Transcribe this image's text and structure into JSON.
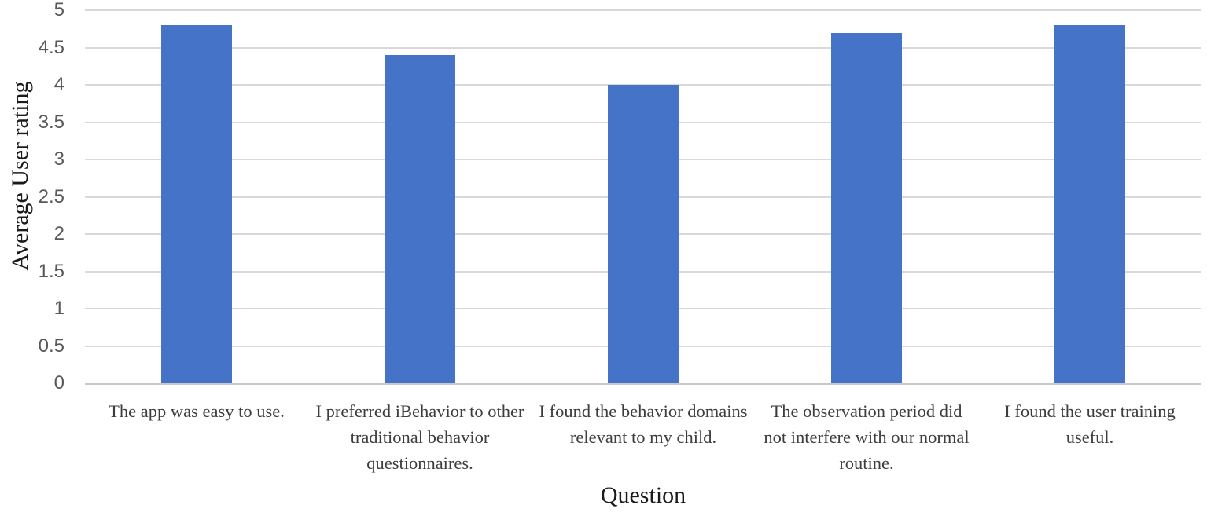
{
  "chart_data": {
    "type": "bar",
    "title": "",
    "xlabel": "Question",
    "ylabel": "Average User rating",
    "categories": [
      "The app was easy to use.",
      "I preferred iBehavior to other traditional behavior questionnaires.",
      "I found the behavior domains relevant to my child.",
      "The observation period did not interfere with our normal routine.",
      "I found the user training useful."
    ],
    "values": [
      4.8,
      4.4,
      4,
      4.7,
      4.8
    ],
    "ylim": [
      0,
      5
    ],
    "ytick_step": 0.5,
    "yticks": [
      "0",
      "0.5",
      "1",
      "1.5",
      "2",
      "2.5",
      "3",
      "3.5",
      "4",
      "4.5",
      "5"
    ],
    "grid": "horizontal gridlines on, every 0.5",
    "legend": "none",
    "colors": {
      "bar": "#4573C8",
      "gridline": "#D9D9D9",
      "axis_line": "#C9C9C9",
      "tick_label": "#595959",
      "category_label": "#3D3D3D",
      "axis_title": "#1A1A1A"
    }
  }
}
